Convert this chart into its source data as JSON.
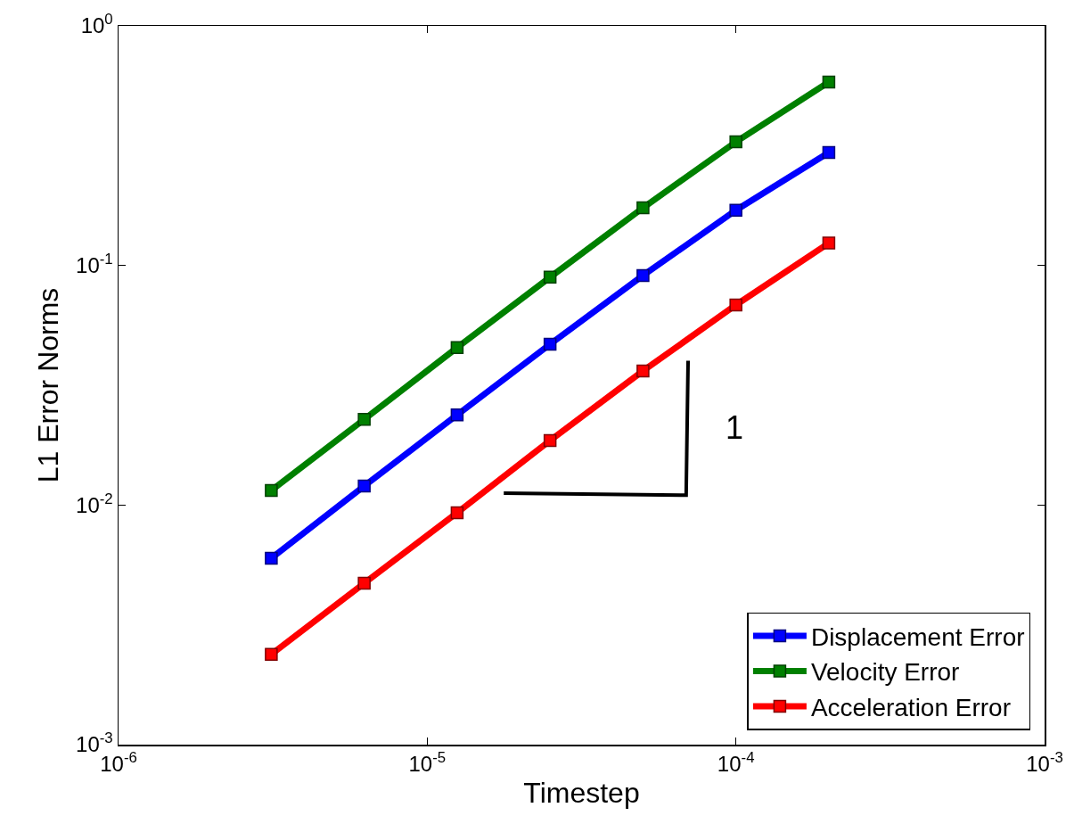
{
  "chart_data": {
    "type": "line",
    "xlabel": "Timestep",
    "ylabel": "L1 Error Norms",
    "log": "xy",
    "grid": false,
    "legend": "bottom right",
    "marker": "square",
    "line_style": "solid",
    "xlim": [
      1e-06,
      0.001
    ],
    "ylim": [
      0.001,
      1
    ],
    "xticks": [
      {
        "value": 1e-06,
        "label": "10$^{-6}$"
      },
      {
        "value": 1e-05,
        "label": "10$^{-5}$"
      },
      {
        "value": 0.0001,
        "label": "10$^{-4}$"
      },
      {
        "value": 0.001,
        "label": "10$^{-3}$"
      }
    ],
    "yticks": [
      {
        "value": 0.001,
        "label": "10$^{-3}$"
      },
      {
        "value": 0.01,
        "label": "10$^{-2}$"
      },
      {
        "value": 0.1,
        "label": "10$^{-1}$"
      },
      {
        "value": 1,
        "label": "10$^{0}$"
      }
    ],
    "x": [
      3.125e-06,
      6.25e-06,
      1.25e-05,
      2.5e-05,
      5e-05,
      0.0001,
      0.0002
    ],
    "series": [
      {
        "name": "Displacement Error",
        "color": "#0000ff",
        "values": [
          0.006,
          0.012,
          0.0238,
          0.0469,
          0.0908,
          0.17,
          0.296
        ]
      },
      {
        "name": "Velocity Error",
        "color": "#008000",
        "values": [
          0.0115,
          0.0228,
          0.0454,
          0.0893,
          0.174,
          0.328,
          0.583
        ]
      },
      {
        "name": "Acceleration Error",
        "color": "#ff0000",
        "values": [
          0.00238,
          0.00472,
          0.00929,
          0.0186,
          0.0363,
          0.0684,
          0.124
        ]
      },
      {
        "type": "line",
        "color": "#000000",
        "marker": "none",
        "x": [
          1.77e-05,
          6.9e-05,
          7e-05
        ],
        "values": [
          0.0112,
          0.011,
          0.04
        ]
      }
    ],
    "annotations": [
      "1"
    ]
  }
}
